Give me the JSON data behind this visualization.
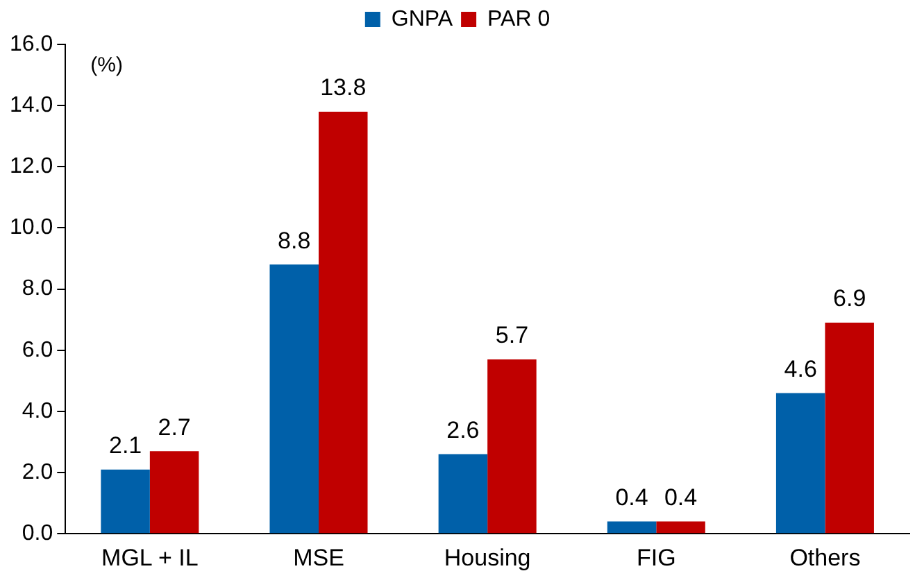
{
  "chart_data": {
    "type": "bar",
    "ylabel": "(%)",
    "categories": [
      "MGL + IL",
      "MSE",
      "Housing",
      "FIG",
      "Others"
    ],
    "series": [
      {
        "name": "GNPA",
        "color": "#0060a9",
        "values": [
          2.1,
          8.8,
          2.6,
          0.4,
          4.6
        ]
      },
      {
        "name": "PAR 0",
        "color": "#c00000",
        "values": [
          2.7,
          13.8,
          5.7,
          0.4,
          6.9
        ]
      }
    ],
    "ylim": [
      0,
      16
    ],
    "yticks": [
      {
        "value": 0,
        "label": "0.0"
      },
      {
        "value": 2,
        "label": "2.0"
      },
      {
        "value": 4,
        "label": "4.0"
      },
      {
        "value": 6,
        "label": "6.0"
      },
      {
        "value": 8,
        "label": "8.0"
      },
      {
        "value": 10,
        "label": "10.0"
      },
      {
        "value": 12,
        "label": "12.0"
      },
      {
        "value": 14,
        "label": "14.0"
      },
      {
        "value": 16,
        "label": "16.0"
      }
    ],
    "grid": false,
    "legend": "top",
    "data_labels": true
  }
}
